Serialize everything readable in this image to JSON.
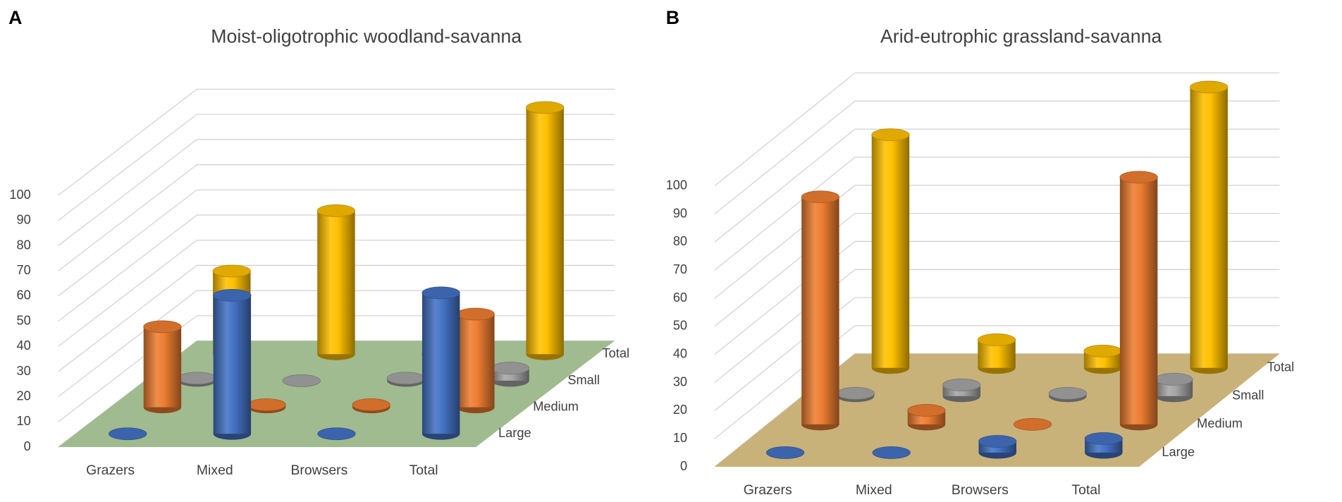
{
  "chart_data": [
    {
      "type": "bar",
      "panel_label": "A",
      "title": "Moist-oligotrophic woodland-savanna",
      "categories": [
        "Grazers",
        "Mixed",
        "Browsers",
        "Total"
      ],
      "series": [
        {
          "name": "Large",
          "color": "#4472c4",
          "values": [
            0,
            55,
            0,
            56
          ]
        },
        {
          "name": "Medium",
          "color": "#ed7d31",
          "values": [
            32,
            1,
            1,
            37
          ]
        },
        {
          "name": "Small",
          "color": "#a5a5a5",
          "values": [
            1,
            0,
            1,
            5
          ]
        },
        {
          "name": "Total",
          "color": "#ffc000",
          "values": [
            33,
            57,
            0,
            98
          ]
        }
      ],
      "ylim": [
        0,
        100
      ],
      "yticks": [
        0,
        10,
        20,
        30,
        40,
        50,
        60,
        70,
        80,
        90,
        100
      ],
      "grid": true,
      "floor_color": "#9fbb8f"
    },
    {
      "type": "bar",
      "panel_label": "B",
      "title": "Arid-eutrophic grassland-savanna",
      "categories": [
        "Grazers",
        "Mixed",
        "Browsers",
        "Total"
      ],
      "series": [
        {
          "name": "Large",
          "color": "#4472c4",
          "values": [
            0,
            0,
            4,
            5
          ]
        },
        {
          "name": "Medium",
          "color": "#ed7d31",
          "values": [
            81,
            5,
            0,
            88
          ]
        },
        {
          "name": "Small",
          "color": "#a5a5a5",
          "values": [
            1,
            4,
            1,
            6
          ]
        },
        {
          "name": "Total",
          "color": "#ffc000",
          "values": [
            83,
            10,
            6,
            100
          ]
        }
      ],
      "ylim": [
        0,
        100
      ],
      "yticks": [
        0,
        10,
        20,
        30,
        40,
        50,
        60,
        70,
        80,
        90,
        100
      ],
      "grid": true,
      "floor_color": "#c8b27a"
    }
  ]
}
